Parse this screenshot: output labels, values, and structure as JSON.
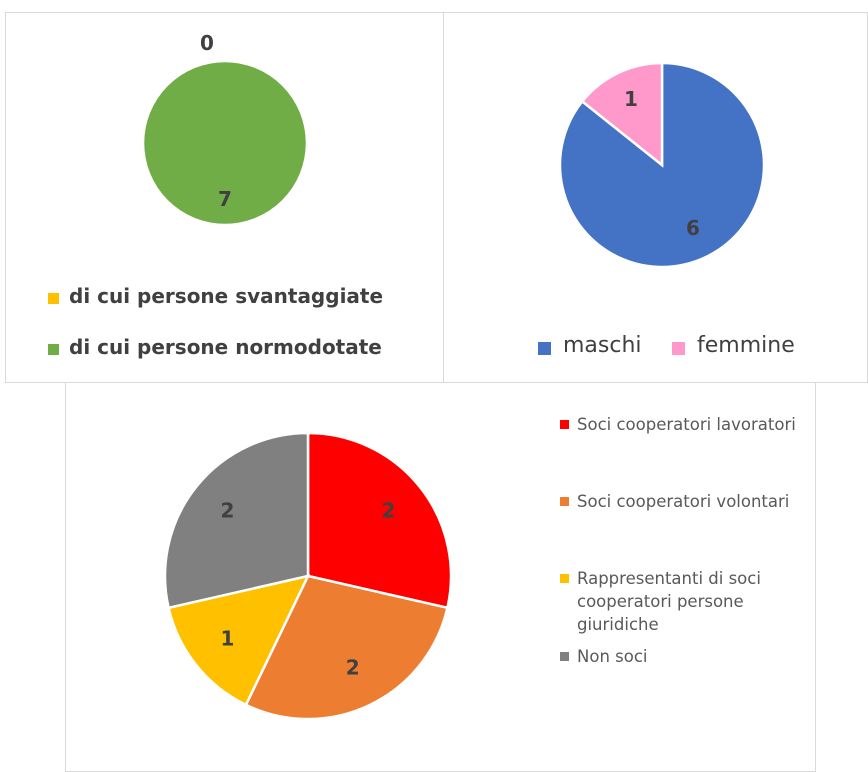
{
  "chart_data": [
    {
      "type": "pie",
      "categories": [
        "di cui persone svantaggiate",
        "di cui persone normodotate"
      ],
      "values": [
        0,
        7
      ],
      "colors": [
        "#FFC000",
        "#70AD47"
      ],
      "legend": "bottom"
    },
    {
      "type": "pie",
      "categories": [
        "maschi",
        "femmine"
      ],
      "values": [
        6,
        1
      ],
      "colors": [
        "#4472C4",
        "#FF99CC"
      ],
      "legend": "bottom"
    },
    {
      "type": "pie",
      "categories": [
        "Soci cooperatori lavoratori",
        "Soci cooperatori volontari",
        "Rappresentanti di soci cooperatori persone giuridiche",
        "Non soci"
      ],
      "values": [
        2,
        2,
        1,
        2
      ],
      "colors": [
        "#FF0000",
        "#ED7D31",
        "#FFC000",
        "#808080"
      ],
      "legend": "right"
    }
  ]
}
